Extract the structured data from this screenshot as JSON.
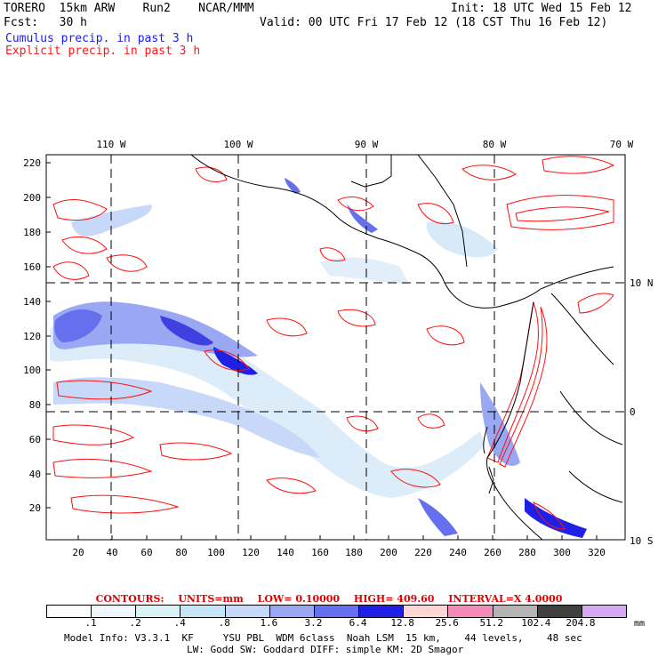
{
  "header": {
    "model": "TORERO  15km ARW    Run2    NCAR/MMM",
    "init": "Init: 18 UTC Wed 15 Feb 12",
    "fcst": "Fcst:   30 h",
    "valid": "Valid: 00 UTC Fri 17 Feb 12 (18 CST Thu 16 Feb 12)",
    "field1": "Cumulus precip. in past 3 h",
    "field2": "Explicit precip. in past 3 h"
  },
  "map": {
    "lon_labels": [
      "110 W",
      "100 W",
      "90 W",
      "80 W",
      "70 W"
    ],
    "lat_labels": [
      "10 N",
      "0",
      "10 S"
    ],
    "x_ticks": [
      "20",
      "40",
      "60",
      "80",
      "100",
      "120",
      "140",
      "160",
      "180",
      "200",
      "220",
      "240",
      "260",
      "280",
      "300",
      "320"
    ],
    "y_ticks": [
      "20",
      "40",
      "60",
      "80",
      "100",
      "120",
      "140",
      "160",
      "180",
      "200",
      "220"
    ]
  },
  "contours": {
    "label": "CONTOURS:",
    "units": "UNITS=mm",
    "low": "LOW= 0.10000",
    "high": "HIGH=  409.60",
    "interval": "INTERVAL=X  4.0000"
  },
  "legend": {
    "labels": [
      ".1",
      ".2",
      ".4",
      ".8",
      "1.6",
      "3.2",
      "6.4",
      "12.8",
      "25.6",
      "51.2",
      "102.4",
      "204.8"
    ],
    "unit": "mm",
    "colors": [
      "#ffffff",
      "#eef8fb",
      "#d8f2f5",
      "#c4e6f7",
      "#c8d8f8",
      "#9aa8f4",
      "#6670ee",
      "#1f1fe6",
      "#ffd6d6",
      "#f48ab8",
      "#b4b4b4",
      "#404040",
      "#d8a8f4"
    ]
  },
  "footer": {
    "line1": "Model Info: V3.3.1  KF     YSU PBL  WDM 6class  Noah LSM  15 km,    44 levels,    48 sec",
    "line2": "LW: Godd SW: Goddard DIFF: simple KM: 2D Smagor"
  }
}
